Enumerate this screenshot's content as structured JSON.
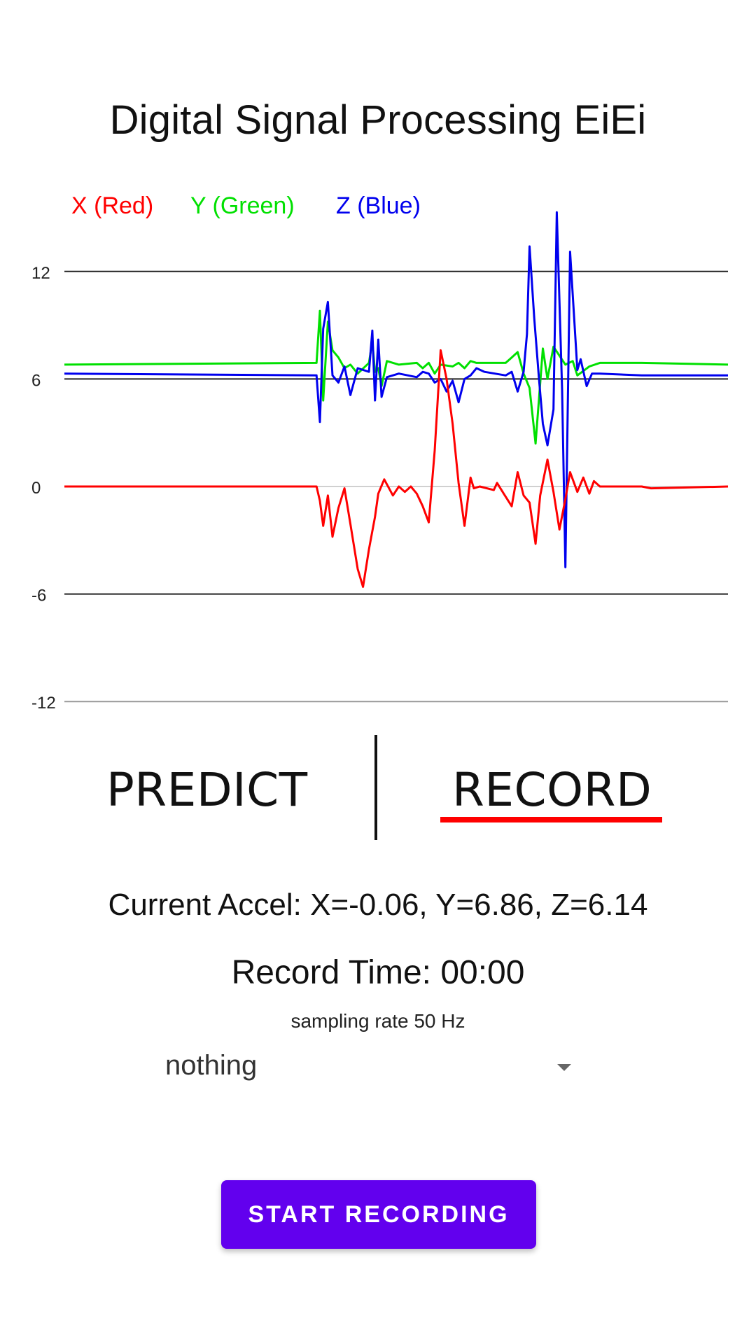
{
  "app": {
    "title": "Digital Signal Processing EiEi"
  },
  "chart_data": {
    "type": "line",
    "legend": [
      "X (Red)",
      "Y (Green)",
      "Z (Blue)"
    ],
    "yticks": [
      "12",
      "6",
      "0",
      "-6",
      "-12"
    ],
    "ylim": [
      -12,
      12
    ],
    "colors": {
      "x": "#ff0000",
      "y": "#00e000",
      "z": "#0000ee"
    },
    "series": [
      {
        "name": "X (Red)",
        "color": "#ff0000",
        "points": [
          [
            0,
            0
          ],
          [
            38,
            0
          ],
          [
            38.5,
            -0.8
          ],
          [
            39,
            -2.2
          ],
          [
            39.7,
            -0.5
          ],
          [
            40.4,
            -2.8
          ],
          [
            41.3,
            -1.2
          ],
          [
            42.2,
            -0.1
          ],
          [
            43.1,
            -2.1
          ],
          [
            44.2,
            -4.6
          ],
          [
            45,
            -5.6
          ],
          [
            45.9,
            -3.5
          ],
          [
            46.8,
            -1.7
          ],
          [
            47.3,
            -0.4
          ],
          [
            48.2,
            0.4
          ],
          [
            49.5,
            -0.5
          ],
          [
            50.4,
            0
          ],
          [
            51.3,
            -0.3
          ],
          [
            52.2,
            0
          ],
          [
            53.1,
            -0.4
          ],
          [
            54,
            -1.1
          ],
          [
            54.9,
            -2
          ],
          [
            55.8,
            2
          ],
          [
            56.7,
            7.6
          ],
          [
            57.6,
            6
          ],
          [
            58.5,
            3.5
          ],
          [
            59.4,
            0.2
          ],
          [
            60.3,
            -2.2
          ],
          [
            61.2,
            0.5
          ],
          [
            61.7,
            -0.1
          ],
          [
            62.6,
            0
          ],
          [
            64.7,
            -0.2
          ],
          [
            65.2,
            0.2
          ],
          [
            66.2,
            -0.4
          ],
          [
            67.4,
            -1.1
          ],
          [
            68.3,
            0.8
          ],
          [
            69.2,
            -0.5
          ],
          [
            70.1,
            -0.9
          ],
          [
            71,
            -3.2
          ],
          [
            71.7,
            -0.5
          ],
          [
            72.8,
            1.5
          ],
          [
            73.7,
            -0.3
          ],
          [
            74.6,
            -2.4
          ],
          [
            75.5,
            -0.7
          ],
          [
            76.2,
            0.8
          ],
          [
            77.3,
            -0.3
          ],
          [
            78.2,
            0.5
          ],
          [
            79.1,
            -0.4
          ],
          [
            79.8,
            0.3
          ],
          [
            80.7,
            0
          ],
          [
            87,
            0
          ],
          [
            88.4,
            -0.1
          ],
          [
            100,
            0
          ]
        ]
      },
      {
        "name": "Y (Green)",
        "color": "#00e000",
        "points": [
          [
            0,
            6.8
          ],
          [
            38,
            6.9
          ],
          [
            38.5,
            9.8
          ],
          [
            39,
            4.8
          ],
          [
            39.7,
            9.2
          ],
          [
            40.4,
            7.6
          ],
          [
            41.3,
            7.2
          ],
          [
            42.2,
            6.6
          ],
          [
            43.1,
            6.8
          ],
          [
            44.2,
            6.3
          ],
          [
            45.9,
            6.9
          ],
          [
            46.4,
            8.1
          ],
          [
            46.8,
            6.4
          ],
          [
            47.3,
            6.6
          ],
          [
            47.8,
            5.6
          ],
          [
            48.6,
            7
          ],
          [
            50.4,
            6.8
          ],
          [
            53.1,
            6.9
          ],
          [
            54,
            6.6
          ],
          [
            54.9,
            6.9
          ],
          [
            55.8,
            6.3
          ],
          [
            56.7,
            6.8
          ],
          [
            58.5,
            6.7
          ],
          [
            59.4,
            6.9
          ],
          [
            60.3,
            6.6
          ],
          [
            61.2,
            7
          ],
          [
            62.1,
            6.9
          ],
          [
            63.3,
            6.9
          ],
          [
            66.5,
            6.9
          ],
          [
            67.4,
            7.2
          ],
          [
            68.3,
            7.5
          ],
          [
            69.2,
            6.3
          ],
          [
            70.1,
            5.5
          ],
          [
            71,
            2.4
          ],
          [
            72.1,
            7.7
          ],
          [
            72.8,
            6
          ],
          [
            73.7,
            7.8
          ],
          [
            75.5,
            6.8
          ],
          [
            76.6,
            7
          ],
          [
            77.3,
            6.2
          ],
          [
            79.1,
            6.7
          ],
          [
            80.7,
            6.9
          ],
          [
            87,
            6.9
          ],
          [
            100,
            6.8
          ]
        ]
      },
      {
        "name": "Z (Blue)",
        "color": "#0000ee",
        "points": [
          [
            0,
            6.3
          ],
          [
            38,
            6.2
          ],
          [
            38.5,
            3.6
          ],
          [
            39,
            8.8
          ],
          [
            39.7,
            10.3
          ],
          [
            40.4,
            6.2
          ],
          [
            41.3,
            5.8
          ],
          [
            42.2,
            6.7
          ],
          [
            43.1,
            5.1
          ],
          [
            44.2,
            6.6
          ],
          [
            45.9,
            6.4
          ],
          [
            46.4,
            8.7
          ],
          [
            46.8,
            4.8
          ],
          [
            47.3,
            8.2
          ],
          [
            47.8,
            5
          ],
          [
            48.6,
            6.1
          ],
          [
            50.4,
            6.3
          ],
          [
            53.1,
            6.1
          ],
          [
            54,
            6.4
          ],
          [
            54.9,
            6.3
          ],
          [
            55.8,
            5.8
          ],
          [
            56.7,
            6
          ],
          [
            57.6,
            5.3
          ],
          [
            58.5,
            5.9
          ],
          [
            59.4,
            4.7
          ],
          [
            60.3,
            6
          ],
          [
            61.2,
            6.2
          ],
          [
            62.1,
            6.6
          ],
          [
            63.3,
            6.4
          ],
          [
            66.5,
            6.2
          ],
          [
            67.4,
            6.4
          ],
          [
            68.3,
            5.3
          ],
          [
            69.2,
            6.4
          ],
          [
            69.7,
            8.5
          ],
          [
            70.1,
            13.4
          ],
          [
            70.8,
            9.4
          ],
          [
            71.5,
            6.1
          ],
          [
            72.1,
            3.5
          ],
          [
            72.8,
            2.3
          ],
          [
            73.7,
            4.3
          ],
          [
            74.2,
            15.3
          ],
          [
            75,
            5.4
          ],
          [
            75.5,
            -4.5
          ],
          [
            76.2,
            13.1
          ],
          [
            77.3,
            6.5
          ],
          [
            77.8,
            7.1
          ],
          [
            78.7,
            5.6
          ],
          [
            79.5,
            6.3
          ],
          [
            80.7,
            6.3
          ],
          [
            87,
            6.2
          ],
          [
            100,
            6.2
          ]
        ]
      }
    ]
  },
  "tabs": {
    "predict": "PREDICT",
    "record": "RECORD"
  },
  "readout": {
    "accel": "Current Accel: X=-0.06, Y=6.86, Z=6.14",
    "record_time": "Record Time: 00:00",
    "sampling_rate": "sampling rate 50 Hz"
  },
  "select": {
    "value": "nothing"
  },
  "button": {
    "label": "START RECORDING"
  }
}
